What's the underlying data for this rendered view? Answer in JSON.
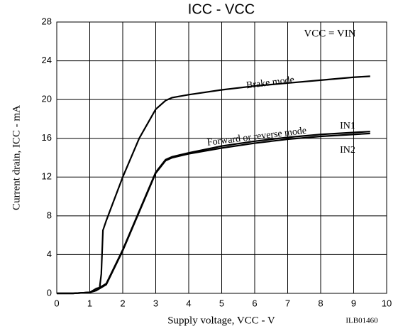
{
  "chart_data": {
    "type": "line",
    "title": "ICC - VCC",
    "x_label": "Supply voltage, VCC - V",
    "y_label": "Current drain, ICC - mA",
    "annotations": [
      "VCC = VIN",
      "Forward or reverse mode",
      "ILB01460"
    ],
    "x": [
      0,
      0.5,
      1,
      1.2,
      1.3,
      1.35,
      1.4,
      1.5,
      2,
      2.5,
      3,
      3.3,
      3.5,
      4,
      5,
      6,
      7,
      8,
      9,
      9.5
    ],
    "series": [
      {
        "name": "Brake mode",
        "color": "#000000",
        "values": [
          0,
          0,
          0.1,
          0.3,
          0.6,
          2,
          6.5,
          7.5,
          12,
          16,
          19,
          19.9,
          20.2,
          20.5,
          21,
          21.4,
          21.7,
          22,
          22.3,
          22.4
        ]
      },
      {
        "name": "IN1",
        "color": "#000000",
        "values": [
          0,
          0,
          0.1,
          0.5,
          0.6,
          0.7,
          0.8,
          1,
          4.5,
          8.5,
          12.5,
          13.8,
          14.1,
          14.5,
          15.2,
          15.7,
          16.1,
          16.4,
          16.6,
          16.7
        ]
      },
      {
        "name": "IN2",
        "color": "#000000",
        "values": [
          0,
          0,
          0.1,
          0.3,
          0.5,
          0.6,
          0.7,
          0.9,
          4.4,
          8.4,
          12.4,
          13.7,
          14,
          14.4,
          15,
          15.5,
          15.9,
          16.2,
          16.4,
          16.5
        ]
      }
    ],
    "xlim": [
      0,
      10
    ],
    "xticks": [
      0,
      1,
      2,
      3,
      4,
      5,
      6,
      7,
      8,
      9,
      10
    ],
    "ylim": [
      0,
      28
    ],
    "yticks": [
      0,
      4,
      8,
      12,
      16,
      20,
      24,
      28
    ],
    "grid": true
  }
}
